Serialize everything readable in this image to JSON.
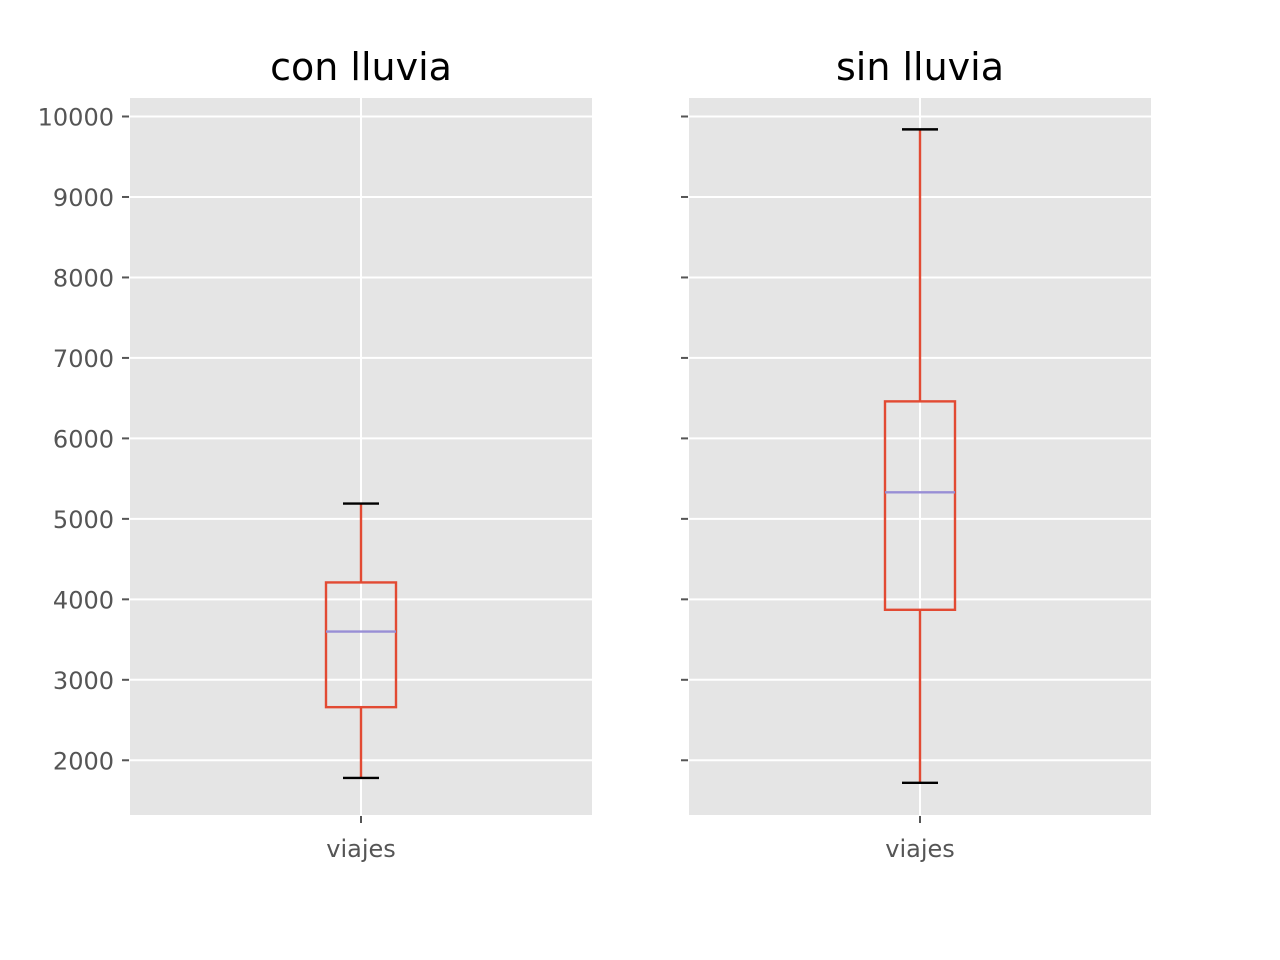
{
  "chart_data": [
    {
      "type": "boxplot",
      "title": "con lluvia",
      "categories": [
        "viajes"
      ],
      "boxes": [
        {
          "category": "viajes",
          "whisker_low": 1780,
          "q1": 2660,
          "median": 3600,
          "q3": 4210,
          "whisker_high": 5190
        }
      ],
      "ylim": [
        1320,
        10230
      ],
      "yticks": [
        2000,
        3000,
        4000,
        5000,
        6000,
        7000,
        8000,
        9000,
        10000
      ],
      "ytick_labels_visible": true,
      "grid": true
    },
    {
      "type": "boxplot",
      "title": "sin lluvia",
      "categories": [
        "viajes"
      ],
      "boxes": [
        {
          "category": "viajes",
          "whisker_low": 1720,
          "q1": 3870,
          "median": 5330,
          "q3": 6460,
          "whisker_high": 9840
        }
      ],
      "ylim": [
        1320,
        10230
      ],
      "yticks": [
        2000,
        3000,
        4000,
        5000,
        6000,
        7000,
        8000,
        9000,
        10000
      ],
      "ytick_labels_visible": false,
      "grid": true
    }
  ],
  "colors": {
    "plot_background": "#e5e5e5",
    "grid": "#ffffff",
    "box": "#e24a33",
    "median": "#988ed5",
    "caps": "#000000",
    "tick_text": "#555555",
    "title_text": "#000000"
  }
}
